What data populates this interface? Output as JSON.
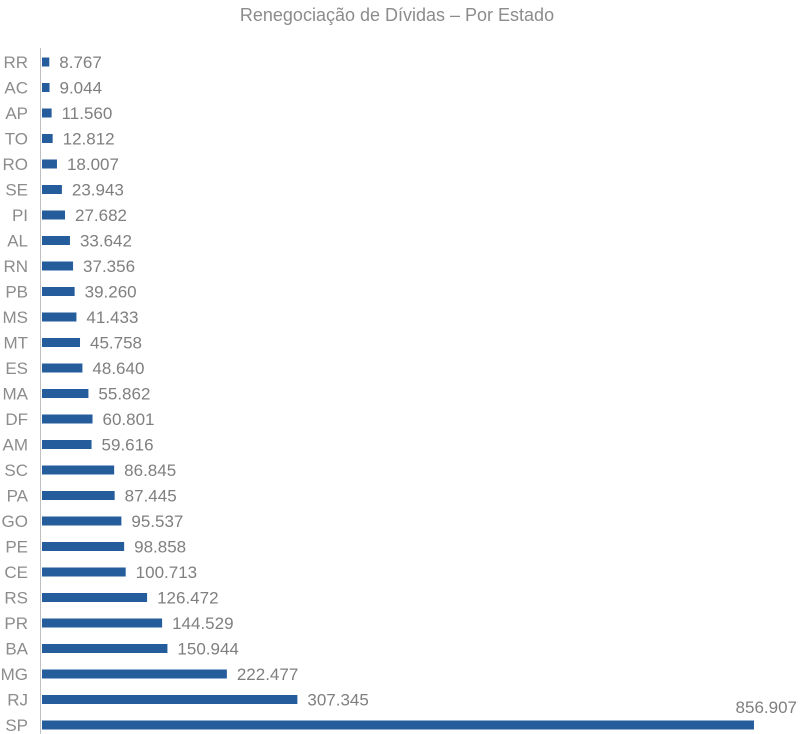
{
  "chart_data": {
    "type": "bar",
    "orientation": "horizontal",
    "title": "Renegociação de Dívidas – Por Estado",
    "categories": [
      "RR",
      "AC",
      "AP",
      "TO",
      "RO",
      "SE",
      "PI",
      "AL",
      "RN",
      "PB",
      "MS",
      "MT",
      "ES",
      "MA",
      "DF",
      "AM",
      "SC",
      "PA",
      "GO",
      "PE",
      "CE",
      "RS",
      "PR",
      "BA",
      "MG",
      "RJ",
      "SP"
    ],
    "values": [
      8767,
      9044,
      11560,
      12812,
      18007,
      23943,
      27682,
      33642,
      37356,
      39260,
      41433,
      45758,
      48640,
      55862,
      60801,
      59616,
      86845,
      87445,
      95537,
      98858,
      100713,
      126472,
      144529,
      150944,
      222477,
      307345,
      856907
    ],
    "value_labels": [
      "8.767",
      "9.044",
      "11.560",
      "12.812",
      "18.007",
      "23.943",
      "27.682",
      "33.642",
      "37.356",
      "39.260",
      "41.433",
      "45.758",
      "48.640",
      "55.862",
      "60.801",
      "59.616",
      "86.845",
      "87.445",
      "95.537",
      "98.858",
      "100.713",
      "126.472",
      "144.529",
      "150.944",
      "222.477",
      "307.345",
      "856.907"
    ],
    "xlim": [
      0,
      856907
    ],
    "bar_color": "#245c9c",
    "grid": false,
    "legend": "none"
  }
}
